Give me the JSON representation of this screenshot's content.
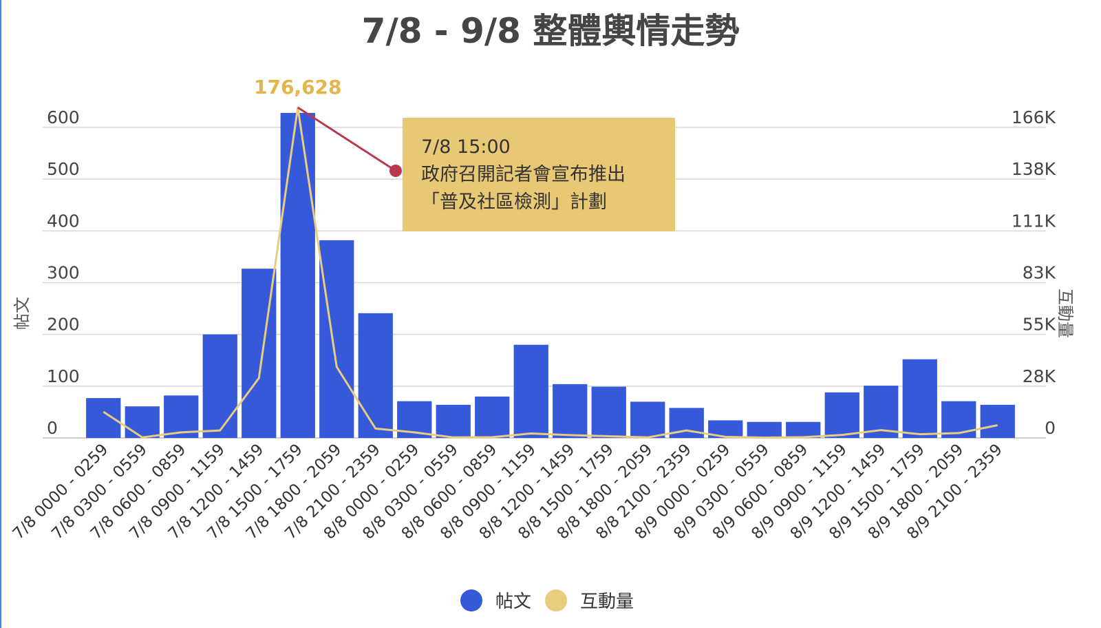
{
  "chart_data": {
    "type": "bar",
    "title": "7/8 - 9/8 整體輿情走勢",
    "categories": [
      "7/8 0000 - 0259",
      "7/8 0300 - 0559",
      "7/8 0600 - 0859",
      "7/8 0900 - 1159",
      "7/8 1200 - 1459",
      "7/8 1500 - 1759",
      "7/8 1800 - 2059",
      "7/8 2100 - 2359",
      "8/8 0000 - 0259",
      "8/8 0300 - 0559",
      "8/8 0600 - 0859",
      "8/8 0900 - 1159",
      "8/8 1200 - 1459",
      "8/8 1500 - 1759",
      "8/8 1800 - 2059",
      "8/8 2100 - 2359",
      "8/9 0000 - 0259",
      "8/9 0300 - 0559",
      "8/9 0600 - 0859",
      "8/9 0900 - 1159",
      "8/9 1200 - 1459",
      "8/9 1500 - 1759",
      "8/9 1800 - 2059",
      "8/9 2100 - 2359"
    ],
    "series": [
      {
        "name": "帖文",
        "axis": "left",
        "type": "bar",
        "color": "#3659d9",
        "values": [
          77,
          61,
          82,
          200,
          327,
          628,
          382,
          241,
          71,
          64,
          80,
          180,
          104,
          99,
          70,
          58,
          34,
          31,
          31,
          88,
          101,
          152,
          71,
          64
        ]
      },
      {
        "name": "互動量",
        "axis": "right",
        "type": "line",
        "color": "#e8cd7e",
        "values": [
          14000,
          300,
          3000,
          4000,
          32000,
          176628,
          38000,
          5000,
          3000,
          300,
          400,
          2400,
          1500,
          900,
          300,
          4000,
          600,
          200,
          400,
          1600,
          4200,
          2000,
          2600,
          6800
        ]
      }
    ],
    "left_axis": {
      "label": "帖文",
      "ticks": [
        "0",
        "100",
        "200",
        "300",
        "400",
        "500",
        "600"
      ],
      "ylim": [
        0,
        600
      ]
    },
    "right_axis": {
      "label": "互動量",
      "ticks": [
        "0",
        "28K",
        "55K",
        "83K",
        "111K",
        "138K",
        "166K"
      ],
      "ylim": [
        0,
        166000
      ]
    },
    "peak_label": "176,628",
    "annotation": {
      "time": "7/8 15:00",
      "lines": [
        "政府召開記者會宣布推出",
        "「普及社區檢測」計劃"
      ],
      "box_color": "#e8c874",
      "connector_color": "#b8384f"
    },
    "legend": [
      "帖文",
      "互動量"
    ],
    "legend_position": "bottom",
    "grid": true
  }
}
